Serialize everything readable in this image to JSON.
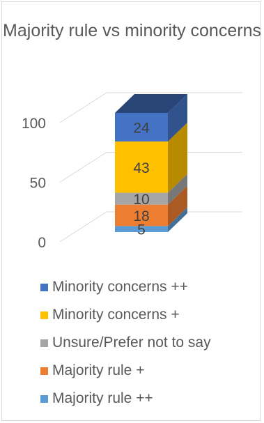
{
  "chart_data": {
    "type": "bar",
    "stacked": true,
    "three_d": true,
    "title": "Majority rule vs minority concerns",
    "categories": [
      ""
    ],
    "ylim": [
      0,
      100
    ],
    "yticks": [
      0,
      50,
      100
    ],
    "grid": true,
    "legend_position": "bottom",
    "series": [
      {
        "name": "Majority rule ++",
        "values": [
          5
        ],
        "color": "#5b9bd5"
      },
      {
        "name": "Majority rule +",
        "values": [
          18
        ],
        "color": "#ed7d31"
      },
      {
        "name": "Unsure/Prefer not to say",
        "values": [
          10
        ],
        "color": "#a5a5a5"
      },
      {
        "name": "Minority concerns +",
        "values": [
          43
        ],
        "color": "#ffc000"
      },
      {
        "name": "Minority concerns ++",
        "values": [
          24
        ],
        "color": "#4472c4"
      }
    ]
  }
}
